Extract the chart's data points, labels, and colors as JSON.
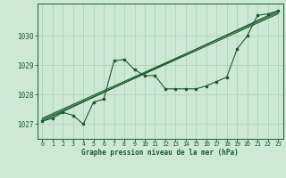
{
  "title": "Graphe pression niveau de la mer (hPa)",
  "bg_color": "#cde8d5",
  "line_color": "#1a5c2a",
  "grid_color": "#aacfb8",
  "xlim": [
    -0.5,
    23.5
  ],
  "ylim": [
    1026.5,
    1031.1
  ],
  "yticks": [
    1027,
    1028,
    1029,
    1030
  ],
  "xticks": [
    0,
    1,
    2,
    3,
    4,
    5,
    6,
    7,
    8,
    9,
    10,
    11,
    12,
    13,
    14,
    15,
    16,
    17,
    18,
    19,
    20,
    21,
    22,
    23
  ],
  "series": [
    [
      0,
      1027.1
    ],
    [
      1,
      1027.2
    ],
    [
      2,
      1027.4
    ],
    [
      3,
      1027.3
    ],
    [
      4,
      1027.0
    ],
    [
      5,
      1027.75
    ],
    [
      6,
      1027.85
    ],
    [
      7,
      1029.15
    ],
    [
      8,
      1029.2
    ],
    [
      9,
      1028.85
    ],
    [
      10,
      1028.65
    ],
    [
      11,
      1028.65
    ],
    [
      12,
      1028.2
    ],
    [
      13,
      1028.2
    ],
    [
      14,
      1028.2
    ],
    [
      15,
      1028.2
    ],
    [
      16,
      1028.3
    ],
    [
      17,
      1028.45
    ],
    [
      18,
      1028.6
    ],
    [
      19,
      1029.55
    ],
    [
      20,
      1030.0
    ],
    [
      21,
      1030.7
    ],
    [
      22,
      1030.75
    ],
    [
      23,
      1030.85
    ]
  ],
  "trend_lines": [
    [
      [
        0,
        1027.1
      ],
      [
        23,
        1030.85
      ]
    ],
    [
      [
        0,
        1027.15
      ],
      [
        23,
        1030.75
      ]
    ],
    [
      [
        0,
        1027.2
      ],
      [
        23,
        1030.8
      ]
    ]
  ]
}
